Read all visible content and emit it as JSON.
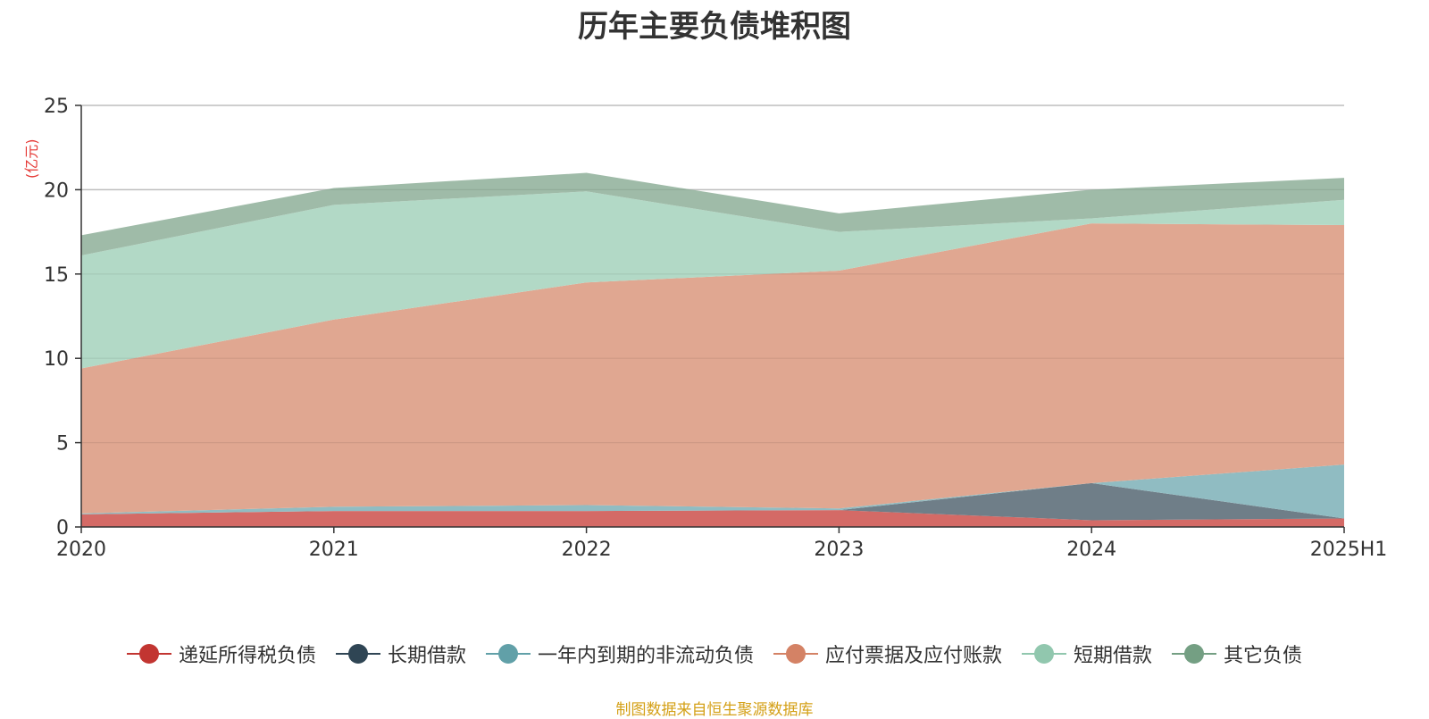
{
  "title": "历年主要负债堆积图",
  "unit_label": "(亿元)",
  "source": "制图数据来自恒生聚源数据库",
  "chart_data": {
    "type": "area",
    "stacked": true,
    "categories": [
      "2020",
      "2021",
      "2022",
      "2023",
      "2024",
      "2025H1"
    ],
    "ylim": [
      0,
      25
    ],
    "yticks": [
      0,
      5,
      10,
      15,
      20,
      25
    ],
    "grid": true,
    "legend_position": "bottom",
    "series": [
      {
        "name": "递延所得税负债",
        "color": "#c23531",
        "fill": "#d46a66",
        "values": [
          0.75,
          0.95,
          0.95,
          1.0,
          0.4,
          0.5
        ]
      },
      {
        "name": "长期借款",
        "color": "#2f4554",
        "fill": "#6f7e88",
        "values": [
          0.0,
          0.0,
          0.0,
          0.0,
          2.2,
          0.0
        ]
      },
      {
        "name": "一年内到期的非流动负债",
        "color": "#61a0a8",
        "fill": "#90bcc2",
        "values": [
          0.05,
          0.25,
          0.35,
          0.1,
          0.0,
          3.2
        ]
      },
      {
        "name": "应付票据及应付账款",
        "color": "#d48265",
        "fill": "#e0a791",
        "values": [
          8.6,
          11.1,
          13.2,
          14.1,
          15.4,
          14.2
        ]
      },
      {
        "name": "短期借款",
        "color": "#91c7ae",
        "fill": "#b2d9c6",
        "values": [
          6.7,
          6.8,
          5.4,
          2.3,
          0.3,
          1.5
        ]
      },
      {
        "name": "其它负债",
        "color": "#749f83",
        "fill": "#9fbba8",
        "values": [
          1.2,
          1.0,
          1.1,
          1.1,
          1.7,
          1.3
        ]
      }
    ]
  }
}
